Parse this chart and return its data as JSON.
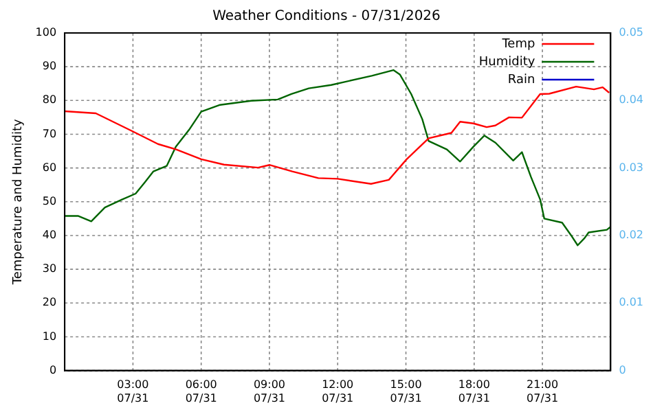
{
  "chart_data": {
    "type": "line",
    "title": "Weather Conditions - 07/31/2026",
    "ylabel": "Temperature and Humidity",
    "xlim": [
      "2026-07-31T00:00",
      "2026-08-01T00:00"
    ],
    "xticks": [
      {
        "value": "2026-07-31T03:00",
        "label": "03:00\n07/31"
      },
      {
        "value": "2026-07-31T06:00",
        "label": "06:00\n07/31"
      },
      {
        "value": "2026-07-31T09:00",
        "label": "09:00\n07/31"
      },
      {
        "value": "2026-07-31T12:00",
        "label": "12:00\n07/31"
      },
      {
        "value": "2026-07-31T15:00",
        "label": "15:00\n07/31"
      },
      {
        "value": "2026-07-31T18:00",
        "label": "18:00\n07/31"
      },
      {
        "value": "2026-07-31T21:00",
        "label": "21:00\n07/31"
      }
    ],
    "ylim": [
      0,
      100
    ],
    "yticks": [
      0,
      10,
      20,
      30,
      40,
      50,
      60,
      70,
      80,
      90,
      100
    ],
    "y2lim": [
      0,
      0.05
    ],
    "y2ticks": [
      0,
      0.01,
      0.02,
      0.03,
      0.04,
      0.05
    ],
    "grid": true,
    "legend": "top right",
    "marker": "none",
    "line_style": "solid",
    "series": [
      {
        "name": "Temp",
        "color": "#ff0000",
        "x": [
          "2026-07-31T00:00",
          "2026-07-31T01:22",
          "2026-07-31T03:00",
          "2026-07-31T04:06",
          "2026-07-31T04:54",
          "2026-07-31T06:00",
          "2026-07-31T07:00",
          "2026-07-31T08:30",
          "2026-07-31T09:00",
          "2026-07-31T10:00",
          "2026-07-31T11:09",
          "2026-07-31T12:00",
          "2026-07-31T13:28",
          "2026-07-31T14:15",
          "2026-07-31T15:02",
          "2026-07-31T16:00",
          "2026-07-31T17:00",
          "2026-07-31T17:23",
          "2026-07-31T17:58",
          "2026-07-31T18:33",
          "2026-07-31T18:56",
          "2026-07-31T19:32",
          "2026-07-31T20:06",
          "2026-07-31T20:54",
          "2026-07-31T21:18",
          "2026-07-31T22:29",
          "2026-07-31T23:16",
          "2026-07-31T23:39",
          "2026-07-31T23:56"
        ],
        "values": [
          76.8,
          76.2,
          70.8,
          67.1,
          65.5,
          62.6,
          61,
          60.1,
          60.9,
          59,
          57,
          56.8,
          55.3,
          56.5,
          62.6,
          68.8,
          70.4,
          73.7,
          73.2,
          72.1,
          72.6,
          75,
          74.9,
          81.9,
          82,
          84.1,
          83.3,
          83.9,
          82.3
        ]
      },
      {
        "name": "Humidity",
        "color": "#006400",
        "x": [
          "2026-07-31T00:00",
          "2026-07-31T00:35",
          "2026-07-31T01:10",
          "2026-07-31T01:46",
          "2026-07-31T02:32",
          "2026-07-31T03:07",
          "2026-07-31T03:31",
          "2026-07-31T03:54",
          "2026-07-31T04:29",
          "2026-07-31T04:53",
          "2026-07-31T05:28",
          "2026-07-31T06:00",
          "2026-07-31T06:50",
          "2026-07-31T08:12",
          "2026-07-31T09:22",
          "2026-07-31T09:58",
          "2026-07-31T10:44",
          "2026-07-31T11:43",
          "2026-07-31T13:30",
          "2026-07-31T14:27",
          "2026-07-31T14:44",
          "2026-07-31T15:14",
          "2026-07-31T15:43",
          "2026-07-31T16:00",
          "2026-07-31T16:48",
          "2026-07-31T17:23",
          "2026-07-31T17:58",
          "2026-07-31T18:27",
          "2026-07-31T18:56",
          "2026-07-31T19:43",
          "2026-07-31T20:06",
          "2026-07-31T20:30",
          "2026-07-31T20:54",
          "2026-07-31T21:05",
          "2026-07-31T21:52",
          "2026-07-31T22:16",
          "2026-07-31T22:33",
          "2026-07-31T22:51",
          "2026-07-31T23:02",
          "2026-07-31T23:50",
          "2026-08-01T00:00"
        ],
        "values": [
          45.8,
          45.8,
          44.2,
          48.3,
          50.7,
          52.4,
          55.7,
          59,
          60.6,
          66.3,
          71.3,
          76.7,
          78.7,
          79.9,
          80.3,
          81.9,
          83.6,
          84.6,
          87.3,
          89,
          87.7,
          81.9,
          74.5,
          68,
          65.5,
          61.9,
          66.3,
          69.6,
          67.5,
          62.2,
          64.7,
          57.3,
          50.7,
          45,
          43.8,
          40,
          37.1,
          39.2,
          40.9,
          41.7,
          42.6
        ]
      },
      {
        "name": "Rain",
        "color": "#0000cc",
        "axis": "y2"
      }
    ]
  }
}
